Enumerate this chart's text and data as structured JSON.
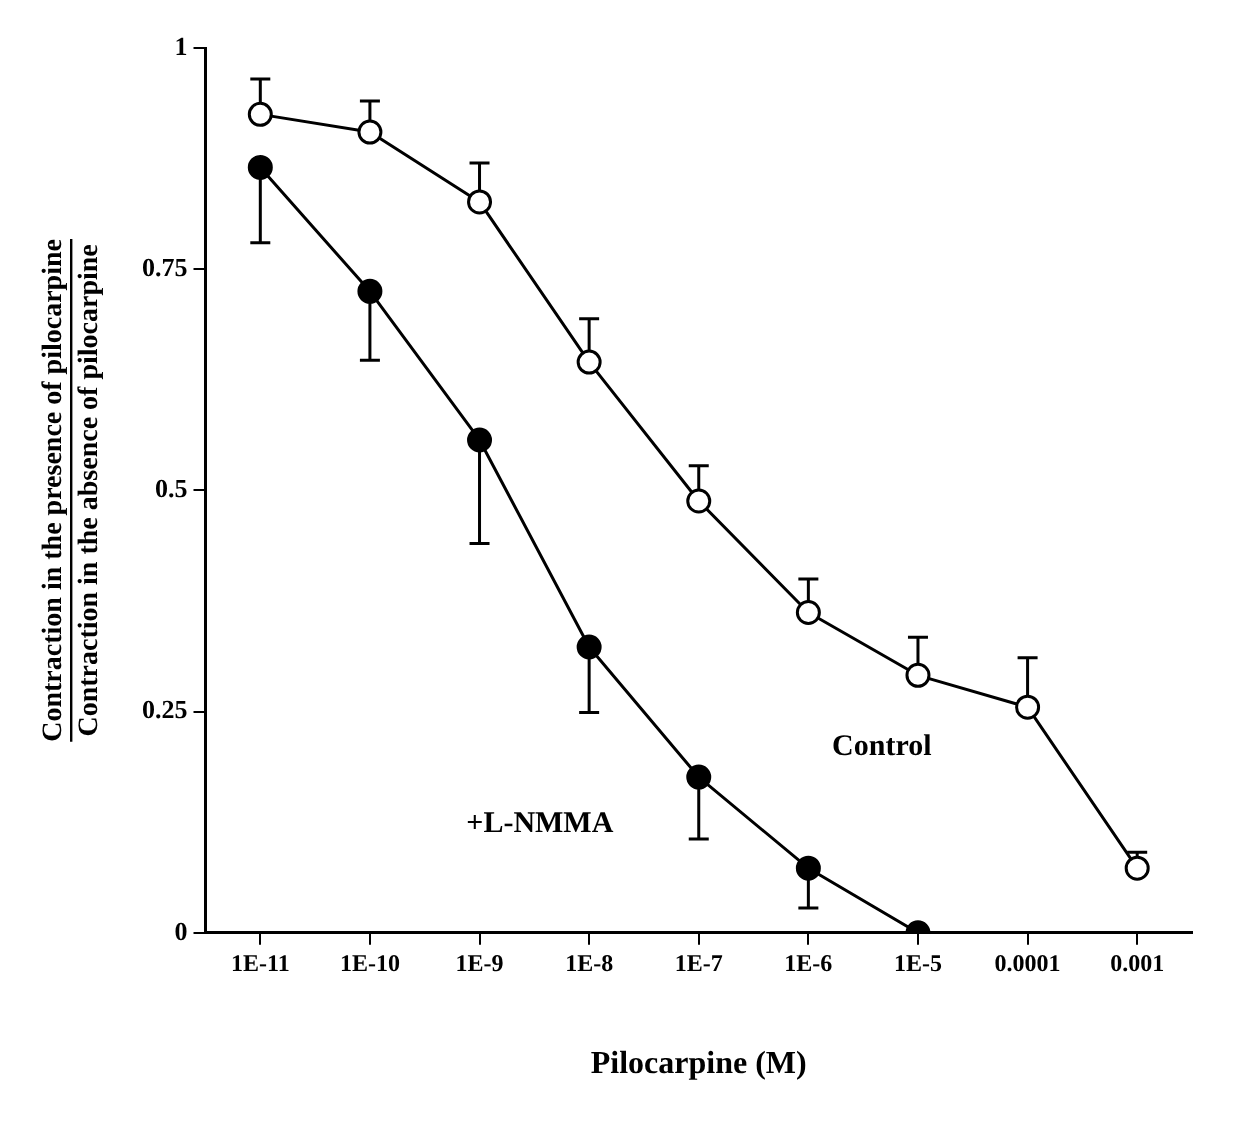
{
  "chart_data": {
    "type": "line",
    "xlabel": "Pilocarpine (M)",
    "ylabel": [
      "Contraction in the presence of pilocarpine",
      "Contraction in the absence of pilocarpine"
    ],
    "categories": [
      "1E-11",
      "1E-10",
      "1E-9",
      "1E-8",
      "1E-7",
      "1E-6",
      "1E-5",
      "0.0001",
      "0.001"
    ],
    "series": [
      {
        "name": "Control",
        "color": "#000000",
        "values": [
          0.925,
          0.905,
          0.826,
          0.645,
          0.488,
          0.362,
          0.291,
          0.255,
          0.073
        ],
        "errors": [
          [
            0.925,
            0.965
          ],
          [
            0.905,
            0.94
          ],
          [
            0.826,
            0.87
          ],
          [
            0.645,
            0.694
          ],
          [
            0.488,
            0.528
          ],
          [
            0.362,
            0.4
          ],
          [
            0.291,
            0.334
          ],
          [
            0.255,
            0.311
          ],
          [
            0.073,
            0.091
          ]
        ]
      },
      {
        "name": "+L-NMMA",
        "color": "#000000",
        "values": [
          0.865,
          0.725,
          0.557,
          0.323,
          0.176,
          0.073,
          0,
          null,
          null
        ],
        "errors": [
          [
            0.78,
            0.865
          ],
          [
            0.647,
            0.725
          ],
          [
            0.44,
            0.557
          ],
          [
            0.249,
            0.323
          ],
          [
            0.106,
            0.176
          ],
          [
            0.028,
            0.073
          ],
          null,
          null,
          null
        ]
      }
    ],
    "ylim": [
      0,
      1
    ],
    "yticks": [
      0,
      0.25,
      0.5,
      0.75,
      1
    ],
    "grid": false,
    "legend": false,
    "marker": "circle",
    "line_style": "solid"
  }
}
